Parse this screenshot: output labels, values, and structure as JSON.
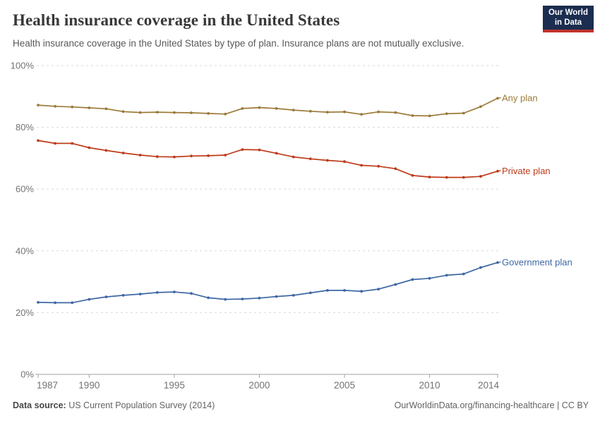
{
  "header": {
    "title": "Health insurance coverage in the United States",
    "logo": {
      "line1": "Our World",
      "line2": "in Data",
      "bg_color": "#1b2d50",
      "accent_color": "#c0332b"
    }
  },
  "subtitle": "Health insurance coverage in the United States by type of plan. Insurance plans are not mutually exclusive.",
  "chart_data": {
    "type": "line",
    "title": "Health insurance coverage in the United States",
    "x": [
      1987,
      1988,
      1989,
      1990,
      1991,
      1992,
      1993,
      1994,
      1995,
      1996,
      1997,
      1998,
      1999,
      2000,
      2001,
      2002,
      2003,
      2004,
      2005,
      2006,
      2007,
      2008,
      2009,
      2010,
      2011,
      2012,
      2013,
      2014
    ],
    "xticks": [
      1987,
      1990,
      1995,
      2000,
      2005,
      2010,
      2014
    ],
    "ylim": [
      0,
      100
    ],
    "yticks": [
      0,
      20,
      40,
      60,
      80,
      100
    ],
    "ytick_suffix": "%",
    "grid": "dashed-horizontal",
    "legend_position": "end-of-line",
    "series": [
      {
        "name": "Any plan",
        "color": "#9B7A38",
        "values": [
          87.2,
          86.8,
          86.6,
          86.3,
          86.0,
          85.1,
          84.8,
          84.9,
          84.8,
          84.7,
          84.5,
          84.3,
          86.1,
          86.4,
          86.1,
          85.6,
          85.2,
          84.9,
          85.0,
          84.2,
          85.0,
          84.8,
          83.8,
          83.7,
          84.4,
          84.6,
          86.7,
          89.4
        ]
      },
      {
        "name": "Private plan",
        "color": "#BE3A19",
        "values": [
          75.7,
          74.8,
          74.8,
          73.4,
          72.5,
          71.7,
          71.0,
          70.5,
          70.4,
          70.7,
          70.8,
          71.0,
          72.8,
          72.7,
          71.6,
          70.4,
          69.8,
          69.3,
          68.9,
          67.7,
          67.4,
          66.6,
          64.4,
          63.9,
          63.8,
          63.8,
          64.1,
          65.8
        ]
      },
      {
        "name": "Government plan",
        "color": "#3E67A3",
        "values": [
          23.3,
          23.2,
          23.2,
          24.3,
          25.1,
          25.6,
          26.0,
          26.5,
          26.7,
          26.2,
          24.8,
          24.3,
          24.4,
          24.7,
          25.2,
          25.6,
          26.4,
          27.2,
          27.2,
          26.9,
          27.6,
          29.1,
          30.7,
          31.1,
          32.1,
          32.5,
          34.6,
          36.2
        ]
      }
    ]
  },
  "footer": {
    "source_label": "Data source:",
    "source_text": "US Current Population Survey (2014)",
    "credit": "OurWorldinData.org/financing-healthcare | CC BY"
  },
  "style": {
    "gridline_color": "#dadada",
    "axis_color": "#a3a3a3",
    "tick_label_color": "#737373"
  }
}
